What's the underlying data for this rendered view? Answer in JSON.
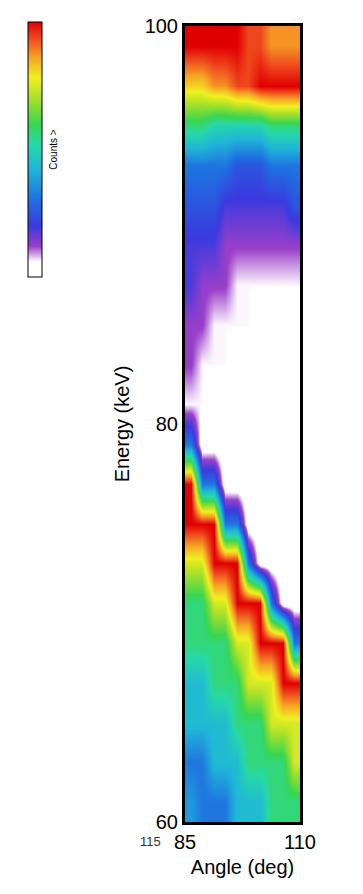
{
  "chart_data": {
    "type": "heatmap",
    "x_label": "Angle (deg)",
    "y_label": "Energy (keV)",
    "colorbar_title": "Counts >",
    "annotations": [
      "115"
    ],
    "x": [
      86.25,
      88.75,
      91.25,
      93.75,
      96.25,
      98.75,
      101.25,
      103.75,
      106.25,
      108.75
    ],
    "y": [
      61,
      63,
      65,
      67,
      69,
      71,
      73,
      75,
      77,
      79,
      81,
      83,
      85,
      87,
      89,
      91,
      93,
      95,
      97,
      99
    ],
    "z": [
      [
        6,
        5,
        5,
        5,
        7,
        7,
        7,
        9,
        9,
        9
      ],
      [
        5,
        5,
        7,
        7,
        7,
        9,
        9,
        9,
        9,
        12
      ],
      [
        7,
        7,
        7,
        7,
        9,
        9,
        9,
        12,
        12,
        12
      ],
      [
        7,
        7,
        9,
        9,
        9,
        12,
        12,
        12,
        16,
        16
      ],
      [
        9,
        9,
        9,
        9,
        12,
        12,
        16,
        16,
        16,
        5
      ],
      [
        9,
        9,
        12,
        12,
        16,
        16,
        16,
        5,
        0,
        0
      ],
      [
        12,
        12,
        16,
        16,
        16,
        5,
        0,
        0,
        0,
        0
      ],
      [
        16,
        16,
        16,
        5,
        5,
        0,
        0,
        0,
        0,
        0
      ],
      [
        16,
        5,
        5,
        0,
        0,
        0,
        0,
        0,
        0,
        0
      ],
      [
        5,
        0,
        0,
        0,
        0,
        0,
        0,
        0,
        0,
        0
      ],
      [
        1,
        1,
        0,
        0,
        0,
        0,
        0,
        0,
        0,
        0
      ],
      [
        2,
        1,
        1,
        1,
        0,
        0,
        0,
        0,
        0,
        0
      ],
      [
        2,
        2,
        1,
        1,
        1,
        1,
        0,
        0,
        0,
        0
      ],
      [
        3,
        2,
        2,
        2,
        1,
        1,
        1,
        1,
        1,
        1
      ],
      [
        3,
        3,
        3,
        2,
        2,
        2,
        2,
        2,
        2,
        2
      ],
      [
        4,
        4,
        4,
        3,
        3,
        3,
        3,
        3,
        3,
        4
      ],
      [
        5,
        5,
        5,
        5,
        4,
        4,
        4,
        5,
        5,
        5
      ],
      [
        9,
        9,
        8,
        8,
        8,
        8,
        8,
        9,
        9,
        9
      ],
      [
        13,
        13,
        14,
        14,
        15,
        15,
        16,
        16,
        16,
        16
      ],
      [
        16,
        16,
        16,
        16,
        16,
        15,
        15,
        14,
        14,
        14
      ]
    ],
    "zlim": [
      0,
      16
    ],
    "xlim": [
      85,
      110
    ],
    "ylim": [
      60,
      100
    ],
    "xticks": [
      85,
      110
    ],
    "yticks": [
      60,
      80,
      100
    ]
  }
}
